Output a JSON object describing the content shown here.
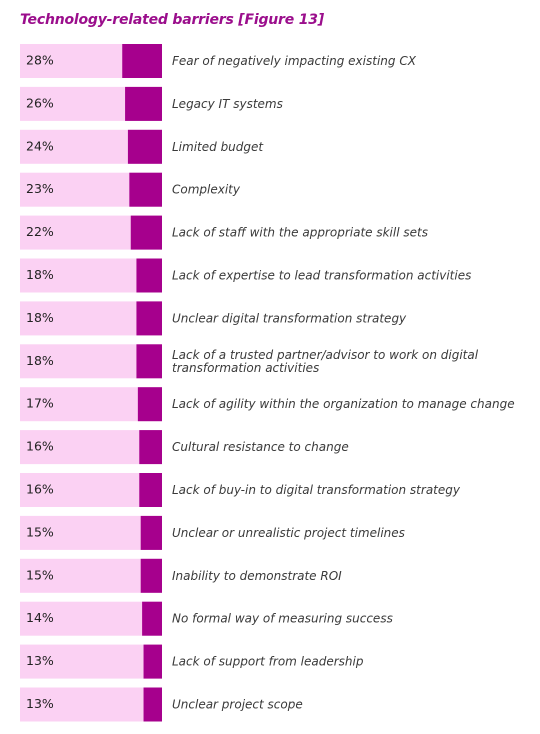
{
  "title": "Technology-related barriers [Figure 13]",
  "colors": {
    "title": "#9b0e8c",
    "bar_background": "#fbd1f3",
    "bar_fill": "#a6008d"
  },
  "chart_data": {
    "type": "bar",
    "orientation": "horizontal",
    "title": "Technology-related barriers [Figure 13]",
    "unit": "%",
    "xlim": [
      0,
      100
    ],
    "categories": [
      "Fear of negatively impacting existing CX",
      "Legacy IT systems",
      "Limited budget",
      "Complexity",
      "Lack of staff with the appropriate skill sets",
      "Lack of expertise to lead transformation activities",
      "Unclear digital transformation strategy",
      "Lack of a trusted partner/advisor to work on digital transformation activities",
      "Lack of agility within the organization to manage change",
      "Cultural resistance to change",
      "Lack of buy-in to digital transformation strategy",
      "Unclear or unrealistic project timelines",
      "Inability to demonstrate ROI",
      "No formal way of measuring success",
      "Lack of support from leadership",
      "Unclear project scope"
    ],
    "values": [
      28,
      26,
      24,
      23,
      22,
      18,
      18,
      18,
      17,
      16,
      16,
      15,
      15,
      14,
      13,
      13
    ],
    "value_labels": [
      "28%",
      "26%",
      "24%",
      "23%",
      "22%",
      "18%",
      "18%",
      "18%",
      "17%",
      "16%",
      "16%",
      "15%",
      "15%",
      "14%",
      "13%",
      "13%"
    ]
  }
}
